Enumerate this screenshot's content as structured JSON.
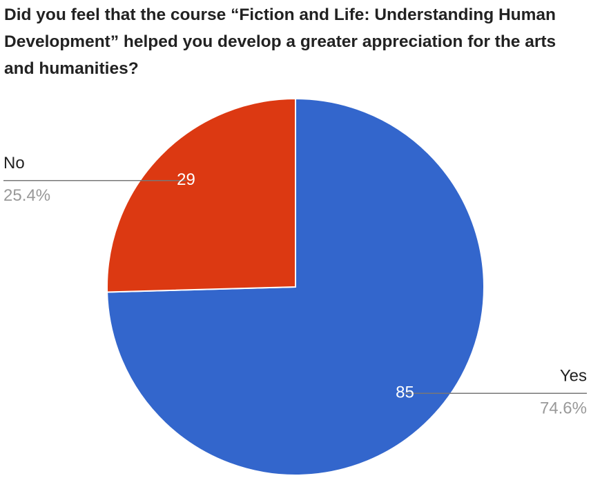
{
  "chart_data": {
    "type": "pie",
    "title": "Did you feel that the course “Fiction and Life: Understanding Human Development” helped you develop a greater appreciation for the arts and humanities?",
    "categories": [
      "Yes",
      "No"
    ],
    "values": [
      85,
      29
    ],
    "percentages": [
      74.6,
      25.4
    ],
    "percentage_labels": [
      "74.6%",
      "25.4%"
    ],
    "colors": [
      "#3366cc",
      "#dc3912"
    ]
  }
}
